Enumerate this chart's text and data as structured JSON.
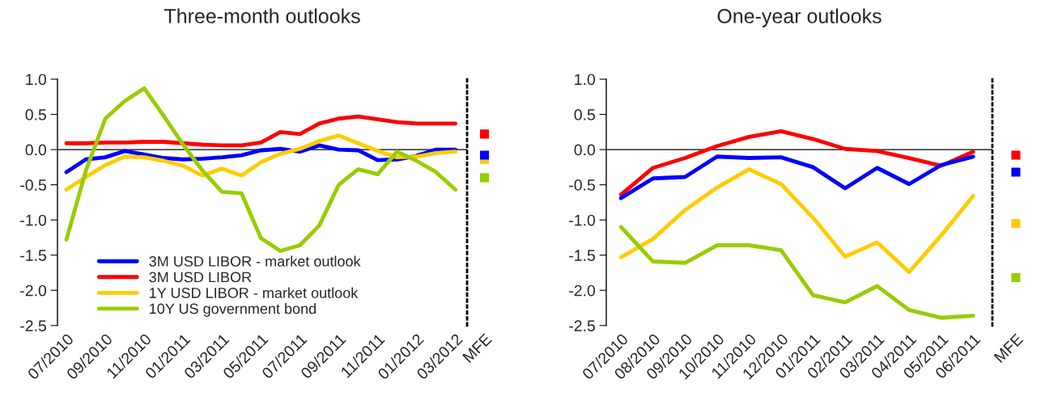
{
  "chart_data": [
    {
      "type": "line",
      "title": "Three-month outlooks",
      "categories": [
        "07/2010",
        null,
        "09/2010",
        null,
        "11/2010",
        null,
        "01/2011",
        null,
        "03/2011",
        null,
        "05/2011",
        null,
        "07/2011",
        null,
        "09/2011",
        null,
        "11/2011",
        null,
        "01/2012",
        null,
        "03/2012"
      ],
      "ylim": [
        -2.5,
        1.0
      ],
      "yticks": [
        {
          "value": -2.5,
          "label": "-2.5"
        },
        {
          "value": -2.0,
          "label": "-2.0"
        },
        {
          "value": -1.5,
          "label": "-1.5"
        },
        {
          "value": -1.0,
          "label": "-1.0"
        },
        {
          "value": -0.5,
          "label": "-0.5"
        },
        {
          "value": 0.0,
          "label": "0.0"
        },
        {
          "value": 0.5,
          "label": "0.5"
        },
        {
          "value": 1.0,
          "label": "1.0"
        }
      ],
      "legend": "bottom left",
      "line_style": "solid",
      "ref_lines": [
        {
          "axis": "y",
          "value": 0,
          "color": "#000000"
        }
      ],
      "series": [
        {
          "name": "3M USD LIBOR - market outlook",
          "color": "#0000ff",
          "values": [
            -0.32,
            -0.14,
            -0.11,
            -0.02,
            -0.07,
            -0.12,
            -0.14,
            -0.13,
            -0.11,
            -0.08,
            -0.01,
            0.01,
            -0.03,
            0.06,
            0.0,
            -0.01,
            -0.15,
            -0.14,
            -0.09,
            0.0,
            0.0
          ]
        },
        {
          "name": "3M USD LIBOR",
          "color": "#ff0000",
          "values": [
            0.09,
            0.09,
            0.1,
            0.1,
            0.11,
            0.11,
            0.09,
            0.07,
            0.06,
            0.06,
            0.1,
            0.25,
            0.22,
            0.37,
            0.44,
            0.47,
            0.43,
            0.39,
            0.37,
            0.37,
            0.37
          ]
        },
        {
          "name": "1Y USD LIBOR - market outlook",
          "color": "#ffcc00",
          "values": [
            -0.57,
            -0.39,
            -0.22,
            -0.1,
            -0.11,
            -0.16,
            -0.23,
            -0.37,
            -0.27,
            -0.37,
            -0.18,
            -0.06,
            0.01,
            0.12,
            0.2,
            0.09,
            -0.02,
            -0.11,
            -0.1,
            -0.05,
            -0.03
          ]
        },
        {
          "name": "10Y US government bond",
          "color": "#99cc00",
          "values": [
            -1.28,
            -0.3,
            0.44,
            0.69,
            0.87,
            0.48,
            0.07,
            -0.3,
            -0.6,
            -0.62,
            -1.26,
            -1.44,
            -1.36,
            -1.08,
            -0.5,
            -0.28,
            -0.35,
            -0.03,
            -0.16,
            -0.32,
            -0.57
          ]
        }
      ]
    },
    {
      "type": "scatter",
      "categories": [
        "MFE"
      ],
      "ylim": [
        -2.5,
        1.0
      ],
      "tick_labels": "x",
      "marker": "square",
      "series": [
        {
          "color": "#ff0000",
          "values": [
            0.22
          ]
        },
        {
          "color": "#0000ff",
          "values": [
            -0.08
          ]
        },
        {
          "color": "#ffcc00",
          "values": [
            -0.14
          ]
        },
        {
          "color": "#99cc00",
          "values": [
            -0.4
          ]
        }
      ]
    },
    {
      "type": "line",
      "title": "One-year outlooks",
      "categories": [
        "07/2010",
        "08/2010",
        "09/2010",
        "10/2010",
        "11/2010",
        "12/2010",
        "01/2011",
        "02/2011",
        "03/2011",
        "04/2011",
        "05/2011",
        "06/2011"
      ],
      "ylim": [
        -2.5,
        1.0
      ],
      "yticks": [
        {
          "value": -2.5,
          "label": "-2.5"
        },
        {
          "value": -2.0,
          "label": "-2.0"
        },
        {
          "value": -1.5,
          "label": "-1.5"
        },
        {
          "value": -1.0,
          "label": "-1.0"
        },
        {
          "value": -0.5,
          "label": "-0.5"
        },
        {
          "value": 0.0,
          "label": "0.0"
        },
        {
          "value": 0.5,
          "label": "0.5"
        },
        {
          "value": 1.0,
          "label": "1.0"
        }
      ],
      "line_style": "solid",
      "ref_lines": [
        {
          "axis": "y",
          "value": 0,
          "color": "#000000"
        }
      ],
      "series": [
        {
          "color": "#ff0000",
          "values": [
            -0.64,
            -0.26,
            -0.12,
            0.05,
            0.18,
            0.26,
            0.15,
            0.01,
            -0.02,
            -0.12,
            -0.23,
            -0.03
          ]
        },
        {
          "color": "#0000ff",
          "values": [
            -0.69,
            -0.41,
            -0.39,
            -0.1,
            -0.12,
            -0.11,
            -0.25,
            -0.55,
            -0.26,
            -0.49,
            -0.22,
            -0.1
          ]
        },
        {
          "color": "#ffcc00",
          "values": [
            -1.53,
            -1.27,
            -0.86,
            -0.54,
            -0.28,
            -0.49,
            -0.97,
            -1.52,
            -1.32,
            -1.74,
            -1.22,
            -0.66
          ]
        },
        {
          "color": "#99cc00",
          "values": [
            -1.1,
            -1.59,
            -1.61,
            -1.36,
            -1.36,
            -1.43,
            -2.07,
            -2.17,
            -1.94,
            -2.28,
            -2.39,
            -2.36
          ]
        }
      ]
    },
    {
      "type": "scatter",
      "categories": [
        "MFE"
      ],
      "ylim": [
        -2.5,
        1.0
      ],
      "tick_labels": "x",
      "marker": "square",
      "series": [
        {
          "color": "#ff0000",
          "values": [
            -0.08
          ]
        },
        {
          "color": "#0000ff",
          "values": [
            -0.32
          ]
        },
        {
          "color": "#ffcc00",
          "values": [
            -1.05
          ]
        },
        {
          "color": "#99cc00",
          "values": [
            -1.82
          ]
        }
      ]
    }
  ]
}
